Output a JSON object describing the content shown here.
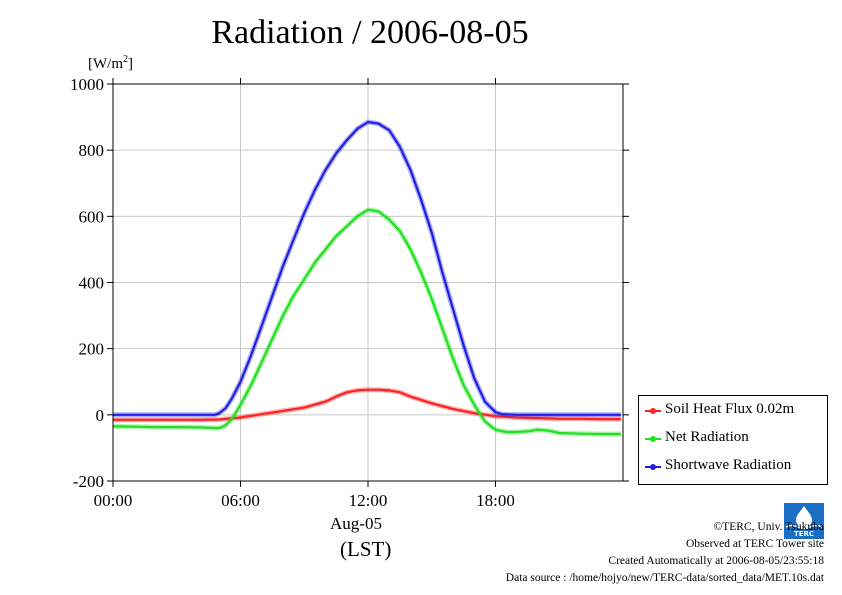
{
  "title": "Radiation / 2006-08-05",
  "y_unit": {
    "base": "[W/m",
    "exp": "2",
    "close": "]"
  },
  "x_date_label": "Aug-05",
  "x_tz_label": "(LST)",
  "footer": {
    "copyright": "©TERC, Univ. Tsukuba",
    "observed": "Observed at TERC Tower site",
    "created": "Created Automatically at 2006-08-05/23:55:18",
    "source": "Data source : /home/hojyo/new/TERC-data/sorted_data/MET.10s.dat"
  },
  "logo": {
    "icon": "terc-logo-icon",
    "text": "TERC"
  },
  "colors": {
    "soil": "#ff2020",
    "net": "#20e020",
    "shortwave": "#2020e0",
    "grid": "#c8c8c8"
  },
  "chart_data": {
    "type": "line",
    "title": "Radiation / 2006-08-05",
    "ylabel": "[W/m2]",
    "xlabel": "Aug-05 (LST)",
    "xlim": [
      0,
      24
    ],
    "ylim": [
      -200,
      1000
    ],
    "x_ticks": [
      0,
      6,
      12,
      18
    ],
    "x_tick_labels": [
      "00:00",
      "06:00",
      "12:00",
      "18:00"
    ],
    "y_ticks": [
      -200,
      0,
      200,
      400,
      600,
      800,
      1000
    ],
    "y_tick_labels": [
      "-200",
      "0",
      "200",
      "400",
      "600",
      "800",
      "1000"
    ],
    "grid": true,
    "legend_position": "outside-bottom-right",
    "series": [
      {
        "name": "Soil Heat Flux 0.02m",
        "color": "#ff2020",
        "points": [
          [
            0,
            -15
          ],
          [
            2,
            -15
          ],
          [
            4,
            -15
          ],
          [
            5,
            -14
          ],
          [
            6,
            -8
          ],
          [
            7,
            2
          ],
          [
            8,
            12
          ],
          [
            9,
            22
          ],
          [
            10,
            40
          ],
          [
            10.5,
            55
          ],
          [
            11,
            68
          ],
          [
            11.5,
            74
          ],
          [
            12,
            76
          ],
          [
            12.5,
            76
          ],
          [
            13,
            74
          ],
          [
            13.5,
            68
          ],
          [
            14,
            55
          ],
          [
            15,
            35
          ],
          [
            16,
            18
          ],
          [
            17,
            5
          ],
          [
            18,
            -4
          ],
          [
            19,
            -8
          ],
          [
            20,
            -10
          ],
          [
            21,
            -12
          ],
          [
            22,
            -12
          ],
          [
            23,
            -13
          ],
          [
            23.9,
            -13
          ]
        ]
      },
      {
        "name": "Net Radiation",
        "color": "#20e020",
        "points": [
          [
            0,
            -35
          ],
          [
            1,
            -36
          ],
          [
            2,
            -37
          ],
          [
            3,
            -37
          ],
          [
            4,
            -38
          ],
          [
            5,
            -40
          ],
          [
            5.3,
            -32
          ],
          [
            5.6,
            -12
          ],
          [
            6,
            30
          ],
          [
            6.5,
            90
          ],
          [
            7,
            160
          ],
          [
            7.5,
            230
          ],
          [
            8,
            300
          ],
          [
            8.5,
            360
          ],
          [
            9,
            410
          ],
          [
            9.5,
            460
          ],
          [
            10,
            500
          ],
          [
            10.5,
            540
          ],
          [
            11,
            570
          ],
          [
            11.5,
            600
          ],
          [
            12,
            620
          ],
          [
            12.5,
            615
          ],
          [
            13,
            590
          ],
          [
            13.5,
            555
          ],
          [
            14,
            500
          ],
          [
            14.5,
            430
          ],
          [
            15,
            350
          ],
          [
            15.5,
            260
          ],
          [
            16,
            170
          ],
          [
            16.5,
            90
          ],
          [
            17,
            30
          ],
          [
            17.5,
            -20
          ],
          [
            18,
            -45
          ],
          [
            18.5,
            -52
          ],
          [
            19,
            -52
          ],
          [
            19.5,
            -50
          ],
          [
            20,
            -45
          ],
          [
            20.5,
            -48
          ],
          [
            21,
            -55
          ],
          [
            22,
            -57
          ],
          [
            23,
            -58
          ],
          [
            23.9,
            -58
          ]
        ]
      },
      {
        "name": "Shortwave Radiation",
        "color": "#2020e0",
        "points": [
          [
            0,
            0
          ],
          [
            1,
            0
          ],
          [
            2,
            0
          ],
          [
            3,
            0
          ],
          [
            4,
            0
          ],
          [
            4.8,
            0
          ],
          [
            5,
            5
          ],
          [
            5.3,
            20
          ],
          [
            5.6,
            50
          ],
          [
            6,
            100
          ],
          [
            6.5,
            180
          ],
          [
            7,
            270
          ],
          [
            7.5,
            360
          ],
          [
            8,
            450
          ],
          [
            8.5,
            530
          ],
          [
            9,
            610
          ],
          [
            9.5,
            680
          ],
          [
            10,
            740
          ],
          [
            10.5,
            790
          ],
          [
            11,
            830
          ],
          [
            11.5,
            865
          ],
          [
            12,
            885
          ],
          [
            12.5,
            880
          ],
          [
            13,
            860
          ],
          [
            13.5,
            810
          ],
          [
            14,
            740
          ],
          [
            14.5,
            650
          ],
          [
            15,
            550
          ],
          [
            15.5,
            430
          ],
          [
            16,
            320
          ],
          [
            16.5,
            210
          ],
          [
            17,
            110
          ],
          [
            17.5,
            40
          ],
          [
            18,
            8
          ],
          [
            18.3,
            2
          ],
          [
            19,
            0
          ],
          [
            20,
            0
          ],
          [
            21,
            0
          ],
          [
            22,
            0
          ],
          [
            23,
            0
          ],
          [
            23.9,
            0
          ]
        ]
      }
    ]
  }
}
